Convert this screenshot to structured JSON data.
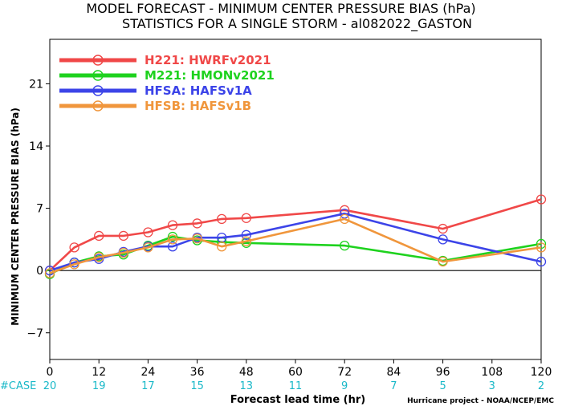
{
  "chart_data": {
    "type": "line",
    "title": "MODEL FORECAST - MINIMUM CENTER PRESSURE BIAS (hPa)",
    "subtitle": "STATISTICS FOR A SINGLE STORM - al082022_GASTON",
    "xlabel": "Forecast lead time (hr)",
    "ylabel": "MINIMUM CENTER PRESSURE BIAS (hPa)",
    "xlim": [
      0,
      120
    ],
    "ylim": [
      -10,
      26
    ],
    "x_ticks": [
      0,
      12,
      24,
      36,
      48,
      60,
      72,
      84,
      96,
      108,
      120
    ],
    "y_ticks": [
      -7,
      0,
      7,
      14,
      21
    ],
    "zero_line": true,
    "legend_position": "top-left",
    "case_label": "#CASE",
    "case_counts": [
      "20",
      "19",
      "17",
      "15",
      "13",
      "11",
      "9",
      "7",
      "5",
      "3",
      "2"
    ],
    "credit": "Hurricane project - NOAA/NCEP/EMC",
    "series": [
      {
        "name": "H221: HWRFv2021",
        "color": "#f04848",
        "x": [
          0,
          6,
          12,
          18,
          24,
          30,
          36,
          42,
          48,
          72,
          96,
          120
        ],
        "y": [
          0,
          2.6,
          3.9,
          3.9,
          4.3,
          5.1,
          5.3,
          5.8,
          5.9,
          6.8,
          4.7,
          8.0
        ]
      },
      {
        "name": "M221: HMONv2021",
        "color": "#1ed21e",
        "x": [
          0,
          6,
          12,
          18,
          24,
          30,
          36,
          42,
          48,
          72,
          96,
          120
        ],
        "y": [
          -0.4,
          0.9,
          1.6,
          1.8,
          2.8,
          3.8,
          3.4,
          3.2,
          3.1,
          2.8,
          1.1,
          3.0
        ]
      },
      {
        "name": "HFSA: HAFSv1A",
        "color": "#3c44e8",
        "x": [
          0,
          6,
          12,
          18,
          24,
          30,
          36,
          42,
          48,
          72,
          96,
          120
        ],
        "y": [
          0,
          0.9,
          1.3,
          2.1,
          2.7,
          2.7,
          3.7,
          3.7,
          4.0,
          6.4,
          3.5,
          1.0
        ]
      },
      {
        "name": "HFSB: HAFSv1B",
        "color": "#f0963c",
        "x": [
          0,
          6,
          12,
          18,
          24,
          30,
          36,
          42,
          48,
          72,
          96,
          120
        ],
        "y": [
          -0.3,
          0.7,
          1.5,
          2.0,
          2.6,
          3.5,
          3.6,
          2.7,
          3.3,
          5.8,
          1.0,
          2.6
        ]
      }
    ]
  }
}
